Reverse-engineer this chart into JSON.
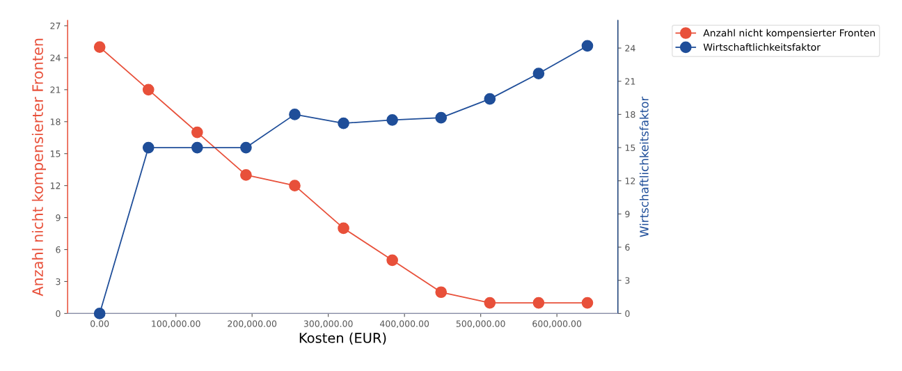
{
  "chart_data": {
    "type": "line",
    "xlabel": "Kosten (EUR)",
    "ylabel": "Anzahl nicht kompensierter Fronten",
    "y2label": "Wirtschaftlichkeitsfaktor",
    "x": [
      0,
      64000,
      128000,
      192000,
      256000,
      320000,
      384000,
      448000,
      512000,
      576000,
      640000
    ],
    "series": [
      {
        "name": "Anzahl nicht kompensierter Fronten",
        "color": "#e8503a",
        "values": [
          25,
          21,
          17,
          13,
          12,
          8,
          5,
          2,
          1,
          1,
          1
        ]
      },
      {
        "name": "Wirtschaftlichkeitsfaktor",
        "color": "#1f4e99",
        "axis": "y2",
        "values": [
          0,
          15,
          15,
          15,
          18,
          17.2,
          17.5,
          17.7,
          19.4,
          21.7,
          24.2
        ]
      }
    ],
    "xlim": [
      -42000,
      680000
    ],
    "xticks": [
      {
        "value": 0,
        "label": "0.00"
      },
      {
        "value": 100000,
        "label": "100,000.00"
      },
      {
        "value": 200000,
        "label": "200,000.00"
      },
      {
        "value": 300000,
        "label": "300,000.00"
      },
      {
        "value": 400000,
        "label": "400,000.00"
      },
      {
        "value": 500000,
        "label": "500,000.00"
      },
      {
        "value": 600000,
        "label": "600,000.00"
      }
    ],
    "ylim": [
      0,
      27.5
    ],
    "yticks": [
      0,
      3,
      6,
      9,
      12,
      15,
      18,
      21,
      24,
      27
    ],
    "y2lim": [
      0,
      26.5
    ],
    "y2ticks": [
      0,
      3,
      6,
      9,
      12,
      15,
      18,
      21,
      24
    ],
    "marker": "circle",
    "line_style": "solid",
    "legend": "top right",
    "grid": false
  }
}
